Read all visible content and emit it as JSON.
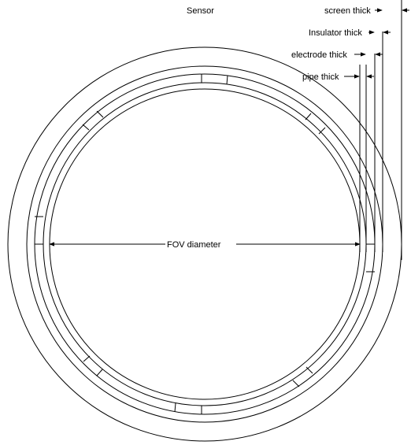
{
  "title": "Sensor",
  "labels": {
    "screen": "screen thick",
    "insulator": "Insulator thick",
    "electrode": "electrode thick",
    "pipe": "pipe thick",
    "fov": "FOV diameter"
  },
  "colors": {
    "stroke": "#000000",
    "background": "#ffffff"
  }
}
